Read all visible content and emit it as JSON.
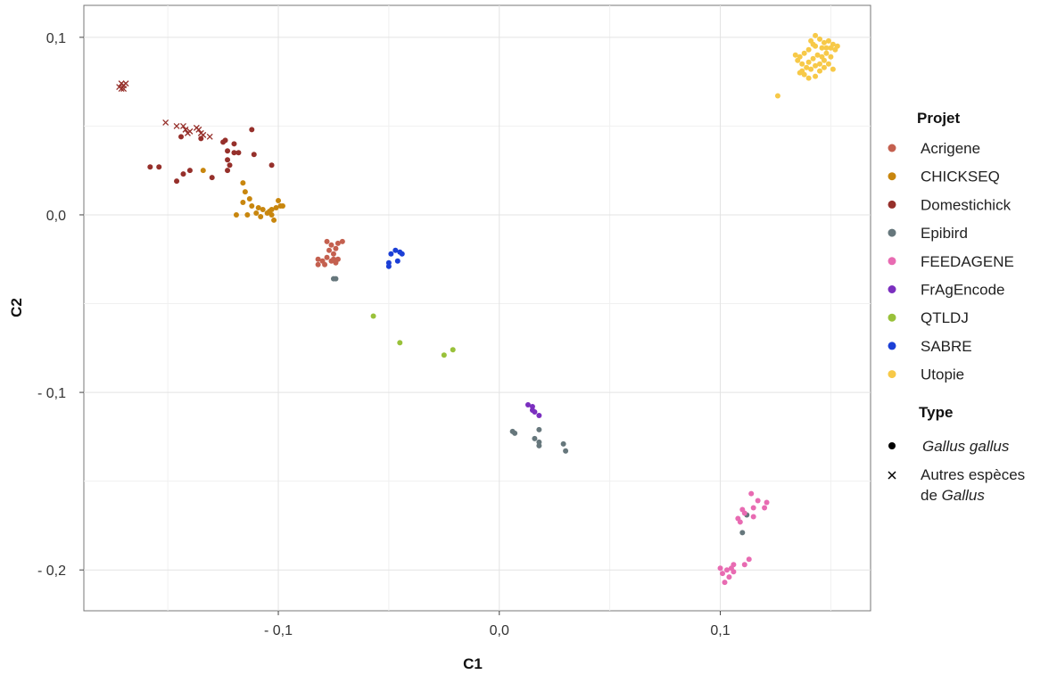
{
  "chart_data": {
    "type": "scatter",
    "xlabel": "C1",
    "ylabel": "C2",
    "xlim": [
      -0.188,
      0.168
    ],
    "ylim": [
      -0.223,
      0.118
    ],
    "x_ticks": [
      -0.1,
      0.0,
      0.1
    ],
    "x_tick_labels": [
      "- 0,1",
      "0,0",
      "0,1"
    ],
    "y_ticks": [
      0.1,
      0.0,
      -0.1,
      -0.2
    ],
    "y_tick_labels": [
      "0,1",
      "0,0",
      "- 0,1",
      "- 0,2"
    ],
    "grid": true,
    "legend_position": "right",
    "legend": {
      "projet_title": "Projet",
      "type_title": "Type",
      "type_items": [
        {
          "symbol": "circle",
          "label": "Gallus gallus",
          "italic": true
        },
        {
          "symbol": "cross",
          "label_line1": "Autres espèces",
          "label_line2_prefix": "de ",
          "label_line2_italic": "Gallus"
        }
      ]
    },
    "series": [
      {
        "name": "Acrigene",
        "color": "#C4604F",
        "points": [
          [
            -0.078,
            -0.015
          ],
          [
            -0.076,
            -0.017
          ],
          [
            -0.073,
            -0.016
          ],
          [
            -0.071,
            -0.015
          ],
          [
            -0.077,
            -0.02
          ],
          [
            -0.075,
            -0.022
          ],
          [
            -0.074,
            -0.019
          ],
          [
            -0.078,
            -0.024
          ],
          [
            -0.076,
            -0.026
          ],
          [
            -0.074,
            -0.027
          ],
          [
            -0.08,
            -0.026
          ],
          [
            -0.082,
            -0.025
          ],
          [
            -0.079,
            -0.028
          ],
          [
            -0.082,
            -0.028
          ],
          [
            -0.073,
            -0.025
          ],
          [
            -0.075,
            -0.025
          ]
        ]
      },
      {
        "name": "CHICKSEQ",
        "color": "#C8860E",
        "points": [
          [
            -0.134,
            0.025
          ],
          [
            -0.116,
            0.018
          ],
          [
            -0.115,
            0.013
          ],
          [
            -0.113,
            0.009
          ],
          [
            -0.116,
            0.007
          ],
          [
            -0.112,
            0.005
          ],
          [
            -0.109,
            0.004
          ],
          [
            -0.107,
            0.003
          ],
          [
            -0.105,
            0.001
          ],
          [
            -0.103,
            0.003
          ],
          [
            -0.101,
            0.004
          ],
          [
            -0.1,
            0.008
          ],
          [
            -0.099,
            0.005
          ],
          [
            -0.098,
            0.005
          ],
          [
            -0.103,
            0.0
          ],
          [
            -0.104,
            0.002
          ],
          [
            -0.102,
            -0.003
          ],
          [
            -0.11,
            0.001
          ],
          [
            -0.114,
            0.0
          ],
          [
            -0.119,
            0.0
          ],
          [
            -0.108,
            -0.001
          ]
        ]
      },
      {
        "name": "Domestichick",
        "color": "#96302B",
        "points": [
          [
            -0.112,
            0.048
          ],
          [
            -0.124,
            0.042
          ],
          [
            -0.125,
            0.041
          ],
          [
            -0.12,
            0.04
          ],
          [
            -0.123,
            0.036
          ],
          [
            -0.12,
            0.035
          ],
          [
            -0.118,
            0.035
          ],
          [
            -0.123,
            0.031
          ],
          [
            -0.122,
            0.028
          ],
          [
            -0.111,
            0.034
          ],
          [
            -0.103,
            0.028
          ],
          [
            -0.123,
            0.025
          ],
          [
            -0.13,
            0.021
          ],
          [
            -0.14,
            0.025
          ],
          [
            -0.143,
            0.023
          ],
          [
            -0.146,
            0.019
          ],
          [
            -0.158,
            0.027
          ],
          [
            -0.154,
            0.027
          ],
          [
            -0.144,
            0.044
          ],
          [
            -0.135,
            0.043
          ]
        ]
      },
      {
        "name": "Epibird",
        "color": "#66777C",
        "points": [
          [
            -0.075,
            -0.036
          ],
          [
            -0.074,
            -0.036
          ],
          [
            0.006,
            -0.122
          ],
          [
            0.007,
            -0.123
          ],
          [
            0.018,
            -0.121
          ],
          [
            0.016,
            -0.126
          ],
          [
            0.018,
            -0.128
          ],
          [
            0.018,
            -0.13
          ],
          [
            0.029,
            -0.129
          ],
          [
            0.03,
            -0.133
          ],
          [
            0.11,
            -0.179
          ],
          [
            0.112,
            -0.169
          ]
        ]
      },
      {
        "name": "FEEDAGENE",
        "color": "#E86BB2",
        "points": [
          [
            0.114,
            -0.157
          ],
          [
            0.117,
            -0.161
          ],
          [
            0.121,
            -0.162
          ],
          [
            0.12,
            -0.165
          ],
          [
            0.115,
            -0.165
          ],
          [
            0.11,
            -0.166
          ],
          [
            0.111,
            -0.168
          ],
          [
            0.115,
            -0.17
          ],
          [
            0.108,
            -0.171
          ],
          [
            0.109,
            -0.173
          ],
          [
            0.113,
            -0.194
          ],
          [
            0.111,
            -0.197
          ],
          [
            0.106,
            -0.197
          ],
          [
            0.105,
            -0.199
          ],
          [
            0.1,
            -0.199
          ],
          [
            0.103,
            -0.2
          ],
          [
            0.106,
            -0.201
          ],
          [
            0.101,
            -0.202
          ],
          [
            0.104,
            -0.204
          ],
          [
            0.102,
            -0.207
          ]
        ]
      },
      {
        "name": "FrAgEncode",
        "color": "#7B2FBF",
        "points": [
          [
            0.013,
            -0.107
          ],
          [
            0.015,
            -0.108
          ],
          [
            0.015,
            -0.11
          ],
          [
            0.016,
            -0.111
          ],
          [
            0.018,
            -0.113
          ]
        ]
      },
      {
        "name": "QTLDJ",
        "color": "#99C13A",
        "points": [
          [
            -0.057,
            -0.057
          ],
          [
            -0.045,
            -0.072
          ],
          [
            -0.025,
            -0.079
          ],
          [
            -0.021,
            -0.076
          ]
        ]
      },
      {
        "name": "SABRE",
        "color": "#1B3FD6",
        "points": [
          [
            -0.049,
            -0.022
          ],
          [
            -0.047,
            -0.02
          ],
          [
            -0.045,
            -0.021
          ],
          [
            -0.044,
            -0.022
          ],
          [
            -0.046,
            -0.026
          ],
          [
            -0.05,
            -0.027
          ],
          [
            -0.05,
            -0.029
          ]
        ]
      },
      {
        "name": "Utopie",
        "color": "#F7C948",
        "points": [
          [
            0.143,
            0.101
          ],
          [
            0.145,
            0.099
          ],
          [
            0.141,
            0.098
          ],
          [
            0.147,
            0.097
          ],
          [
            0.149,
            0.098
          ],
          [
            0.151,
            0.096
          ],
          [
            0.153,
            0.095
          ],
          [
            0.15,
            0.094
          ],
          [
            0.146,
            0.094
          ],
          [
            0.143,
            0.095
          ],
          [
            0.14,
            0.093
          ],
          [
            0.138,
            0.091
          ],
          [
            0.136,
            0.089
          ],
          [
            0.135,
            0.087
          ],
          [
            0.137,
            0.085
          ],
          [
            0.14,
            0.086
          ],
          [
            0.142,
            0.088
          ],
          [
            0.144,
            0.09
          ],
          [
            0.146,
            0.089
          ],
          [
            0.148,
            0.091
          ],
          [
            0.15,
            0.089
          ],
          [
            0.147,
            0.087
          ],
          [
            0.145,
            0.085
          ],
          [
            0.143,
            0.084
          ],
          [
            0.141,
            0.082
          ],
          [
            0.139,
            0.083
          ],
          [
            0.137,
            0.081
          ],
          [
            0.145,
            0.081
          ],
          [
            0.147,
            0.083
          ],
          [
            0.149,
            0.085
          ],
          [
            0.151,
            0.082
          ],
          [
            0.143,
            0.078
          ],
          [
            0.14,
            0.077
          ],
          [
            0.138,
            0.079
          ],
          [
            0.136,
            0.08
          ],
          [
            0.152,
            0.093
          ],
          [
            0.134,
            0.09
          ],
          [
            0.142,
            0.096
          ],
          [
            0.148,
            0.094
          ],
          [
            0.126,
            0.067
          ]
        ]
      }
    ],
    "other_species": {
      "name": "Autres espèces de Gallus",
      "color": "#96302B",
      "points": [
        [
          -0.172,
          0.072
        ],
        [
          -0.171,
          0.074
        ],
        [
          -0.17,
          0.073
        ],
        [
          -0.169,
          0.074
        ],
        [
          -0.17,
          0.071
        ],
        [
          -0.171,
          0.071
        ],
        [
          -0.151,
          0.052
        ],
        [
          -0.146,
          0.05
        ],
        [
          -0.143,
          0.05
        ],
        [
          -0.142,
          0.048
        ],
        [
          -0.14,
          0.047
        ],
        [
          -0.137,
          0.049
        ],
        [
          -0.136,
          0.048
        ],
        [
          -0.135,
          0.046
        ],
        [
          -0.134,
          0.045
        ],
        [
          -0.131,
          0.044
        ],
        [
          -0.141,
          0.046
        ]
      ]
    }
  }
}
